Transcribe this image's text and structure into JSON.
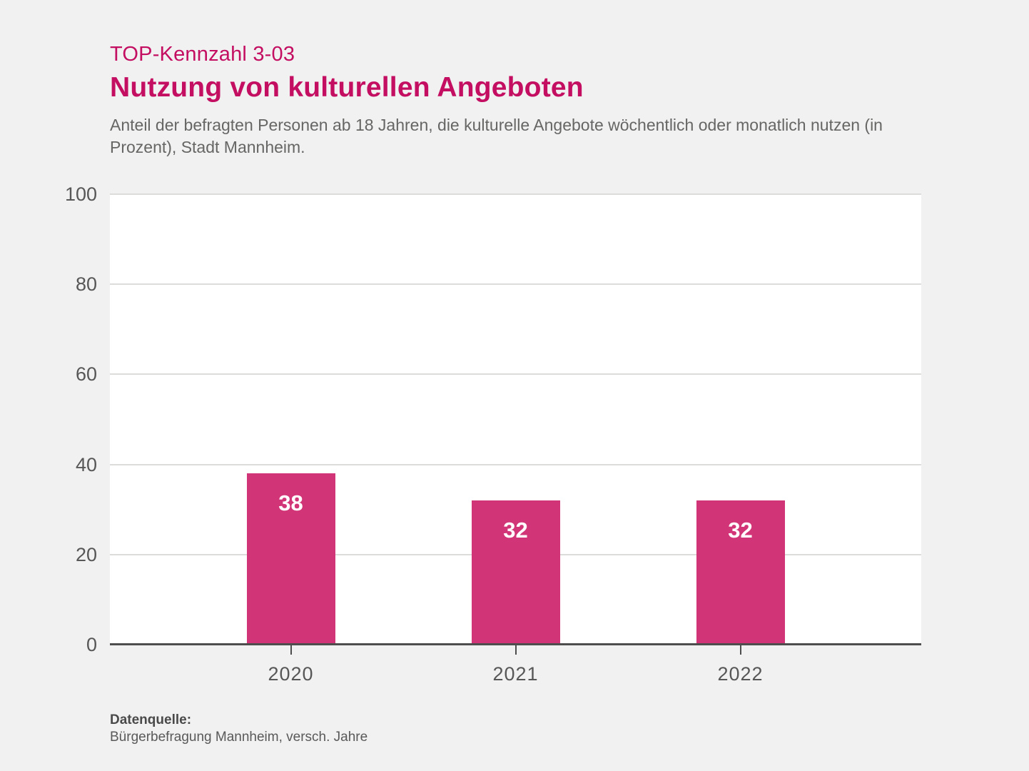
{
  "header": {
    "kicker": "TOP-Kennzahl 3-03",
    "title": "Nutzung von kulturellen Angeboten",
    "subtitle": "Anteil der befragten Personen ab 18 Jahren, die kulturelle Angebote wöchentlich oder monatlich nutzen (in Prozent), Stadt Mannheim.",
    "accent_color": "#c30e61"
  },
  "chart_data": {
    "type": "bar",
    "categories": [
      "2020",
      "2021",
      "2022"
    ],
    "values": [
      38,
      32,
      32
    ],
    "yticks": [
      0,
      20,
      40,
      60,
      80,
      100
    ],
    "ylim": [
      0,
      100
    ],
    "grid": true,
    "legend": false,
    "title": "Nutzung von kulturellen Angeboten",
    "xlabel": "",
    "ylabel": "",
    "bar_color": "#d23577",
    "value_label_color": "#ffffff",
    "plot_background": "#ffffff",
    "page_background": "#f1f1f1",
    "gridline_color": "#dcdcdb",
    "axis_color": "#4d4d4d"
  },
  "footer": {
    "source_label": "Datenquelle:",
    "source_text": "Bürgerbefragung Mannheim, versch. Jahre"
  }
}
